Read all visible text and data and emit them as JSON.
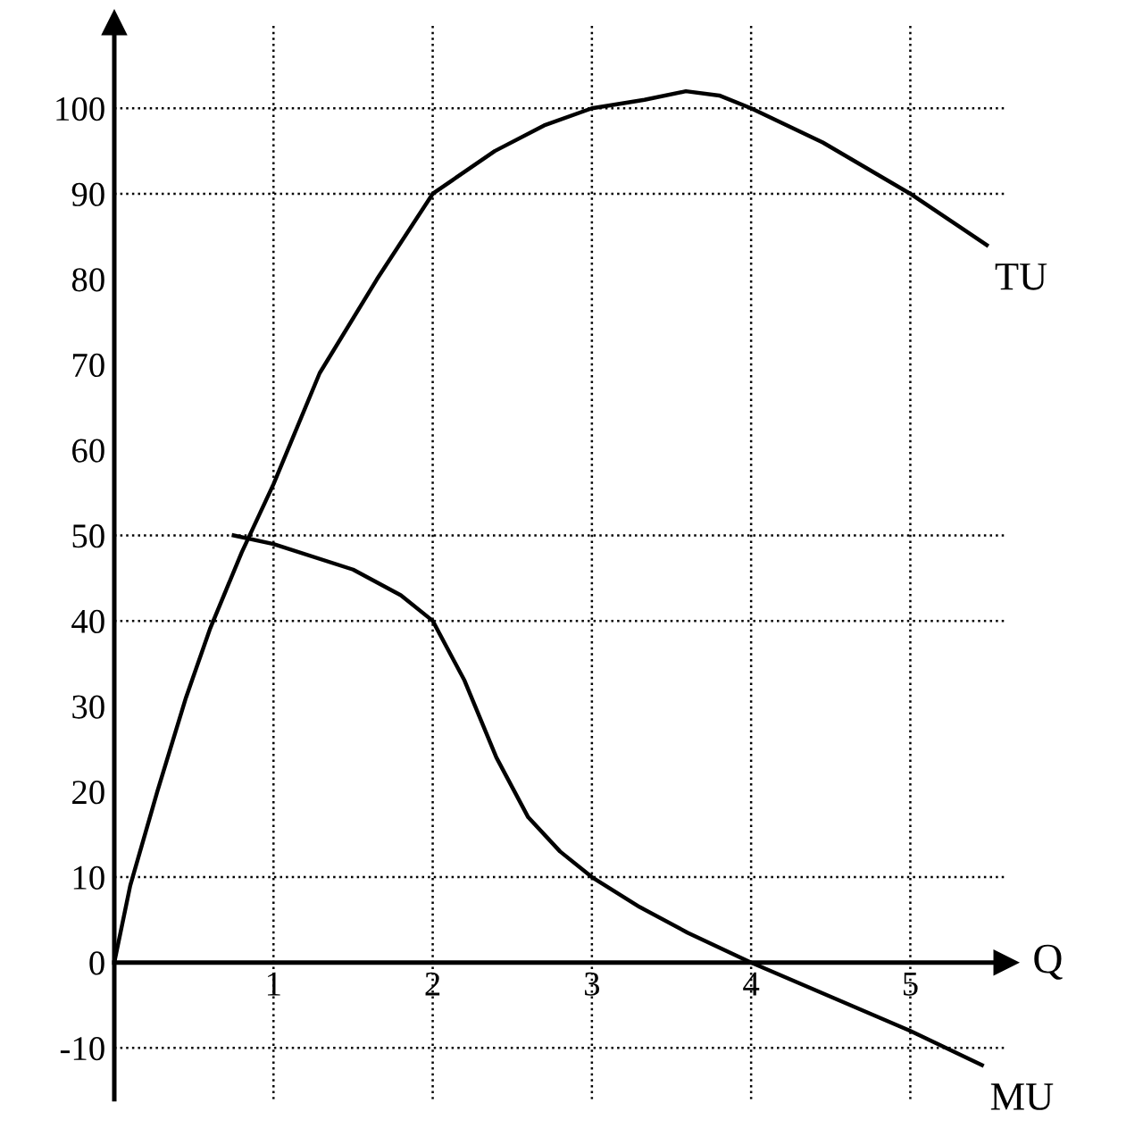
{
  "chart_data": {
    "type": "line",
    "xlabel": "Q",
    "series": [
      {
        "name": "TU",
        "color": "#000000",
        "x": [
          0,
          0.1,
          0.27,
          0.45,
          0.6,
          0.8,
          1,
          1.29,
          1.65,
          2,
          2.39,
          2.7,
          3,
          3.33,
          3.59,
          3.8,
          4,
          4.45,
          5,
          5.48
        ],
        "values": [
          0,
          9,
          20,
          31,
          39,
          48,
          56,
          69,
          80,
          90,
          95,
          98,
          100,
          101,
          102,
          101.5,
          100,
          96,
          90,
          84
        ]
      },
      {
        "name": "MU",
        "color": "#000000",
        "x": [
          0.75,
          1,
          1.5,
          1.8,
          2,
          2.2,
          2.4,
          2.6,
          2.8,
          3,
          3.3,
          3.6,
          4,
          4.5,
          5,
          5.45
        ],
        "values": [
          50,
          49,
          46,
          43,
          40,
          33,
          24,
          17,
          13,
          10,
          6.5,
          3.5,
          0,
          -4,
          -8,
          -12
        ]
      }
    ],
    "xlim": [
      0,
      5.6
    ],
    "ylim": [
      -16,
      110
    ],
    "xticks": [
      1,
      2,
      3,
      4,
      5
    ],
    "yticks": [
      -10,
      0,
      10,
      20,
      30,
      40,
      50,
      60,
      70,
      80,
      90,
      100
    ],
    "ref_lines": [
      {
        "axis": "y",
        "value": 100,
        "line_style": "dotted"
      },
      {
        "axis": "y",
        "value": 90,
        "line_style": "dotted"
      },
      {
        "axis": "y",
        "value": 50,
        "line_style": "dotted"
      },
      {
        "axis": "y",
        "value": 40,
        "line_style": "dotted"
      },
      {
        "axis": "y",
        "value": 10,
        "line_style": "dotted"
      },
      {
        "axis": "y",
        "value": -10,
        "line_style": "dotted"
      },
      {
        "axis": "x",
        "value": 1,
        "line_style": "dotted"
      },
      {
        "axis": "x",
        "value": 2,
        "line_style": "dotted"
      },
      {
        "axis": "x",
        "value": 3,
        "line_style": "dotted"
      },
      {
        "axis": "x",
        "value": 4,
        "line_style": "dotted"
      },
      {
        "axis": "x",
        "value": 5,
        "line_style": "dotted"
      }
    ],
    "grid": false,
    "legend": false,
    "marker": "none",
    "line_style": "solid"
  }
}
